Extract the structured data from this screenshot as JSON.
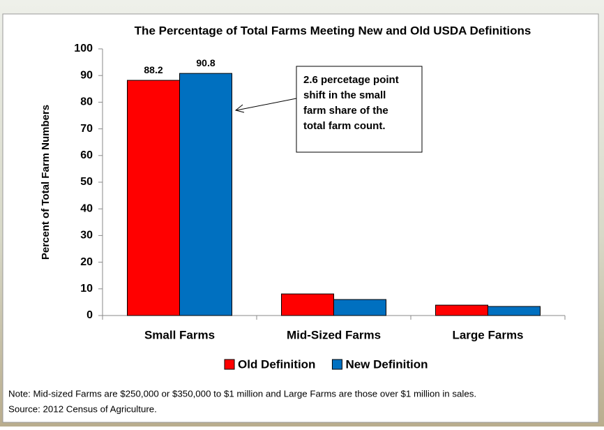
{
  "chart_data": {
    "type": "bar",
    "title": "The Percentage of Total Farms Meeting New and Old USDA Definitions",
    "y_label": "Percent of Total Farm Numbers",
    "categories": [
      "Small Farms",
      "Mid-Sized Farms",
      "Large Farms"
    ],
    "series": [
      {
        "name": "Old Definition",
        "color": "#ff0000",
        "values": [
          88.2,
          8.1,
          3.9
        ],
        "value_labels": [
          "88.2",
          null,
          null
        ]
      },
      {
        "name": "New Definition",
        "color": "#0070c0",
        "values": [
          90.8,
          6.0,
          3.4
        ],
        "value_labels": [
          "90.8",
          null,
          null
        ]
      }
    ],
    "ylim": [
      0,
      100
    ],
    "yticks": [
      0,
      10,
      20,
      30,
      40,
      50,
      60,
      70,
      80,
      90,
      100
    ],
    "legend": "bottom",
    "annotation": [
      "2.6 percetage point",
      "shift in the small",
      "farm share of the",
      "total farm count."
    ],
    "notes": [
      "Note:  Mid-sized Farms are $250,000 or $350,000 to $1 million and Large Farms are those over $1 million in sales.",
      "Source: 2012 Census of Agriculture."
    ]
  }
}
